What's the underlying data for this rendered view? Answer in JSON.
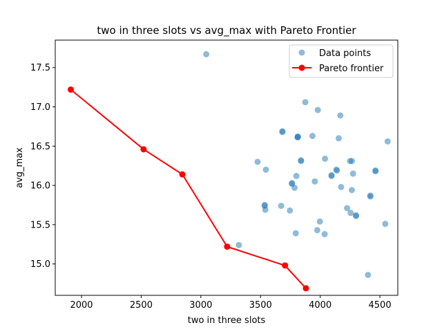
{
  "chart_data": {
    "type": "scatter",
    "title": "two in three slots vs avg_max with Pareto Frontier",
    "xlabel": "two in three slots",
    "ylabel": "avg_max",
    "xlim": [
      1780,
      4650
    ],
    "ylim": [
      14.6,
      17.85
    ],
    "xticks": [
      2000,
      2500,
      3000,
      3500,
      4000,
      4500
    ],
    "yticks": [
      15.0,
      15.5,
      16.0,
      16.5,
      17.0,
      17.5
    ],
    "xtick_labels": [
      "2000",
      "2500",
      "3000",
      "3500",
      "4000",
      "4500"
    ],
    "ytick_labels": [
      "15.0",
      "15.5",
      "16.0",
      "16.5",
      "17.0",
      "17.5"
    ],
    "legend_position": "top-right",
    "legend": [
      {
        "label": "Data points",
        "type": "point",
        "color": "#1f77b4"
      },
      {
        "label": "Pareto frontier",
        "type": "line",
        "color": "#ff0000"
      }
    ],
    "series": [
      {
        "name": "Data points",
        "color": "#1f77b4",
        "x": [
          3045,
          3318,
          3475,
          3540,
          3545,
          3535,
          3535,
          3673,
          3683,
          3683,
          3746,
          3763,
          3763,
          3785,
          3795,
          3800,
          3810,
          3813,
          3812,
          3840,
          3838,
          3875,
          3935,
          3955,
          3980,
          3975,
          3997,
          4037,
          4040,
          4095,
          4095,
          4140,
          4135,
          4155,
          4168,
          4175,
          4225,
          4250,
          4255,
          4265,
          4265,
          4275,
          4300,
          4300,
          4400,
          4420,
          4420,
          4463,
          4463,
          4545,
          4565
        ],
        "y": [
          17.67,
          15.24,
          16.3,
          15.69,
          16.2,
          15.74,
          15.75,
          15.74,
          16.68,
          16.69,
          15.68,
          16.02,
          16.03,
          15.97,
          15.39,
          16.12,
          16.61,
          16.62,
          16.62,
          16.31,
          16.32,
          17.06,
          16.63,
          16.05,
          16.96,
          15.43,
          15.54,
          15.38,
          16.34,
          16.12,
          16.13,
          16.19,
          16.2,
          16.6,
          16.89,
          15.98,
          15.71,
          16.31,
          15.65,
          15.94,
          16.31,
          16.15,
          15.61,
          15.62,
          14.86,
          15.86,
          15.87,
          16.18,
          16.19,
          15.51,
          16.56
        ]
      },
      {
        "name": "Pareto frontier",
        "color": "#ff0000",
        "x": [
          1910,
          2520,
          2845,
          3220,
          3705,
          3880
        ],
        "y": [
          17.22,
          16.46,
          16.14,
          15.22,
          14.98,
          14.69
        ]
      }
    ]
  }
}
